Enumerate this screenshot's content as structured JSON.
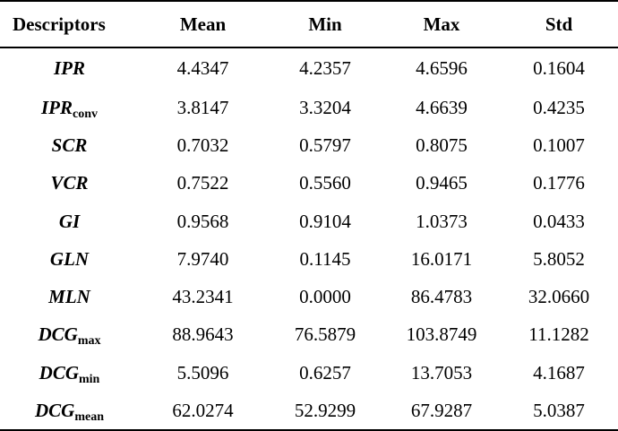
{
  "table": {
    "headers": [
      "Descriptors",
      "Mean",
      "Min",
      "Max",
      "Std"
    ],
    "rows": [
      {
        "desc": "IPR",
        "sub": "",
        "mean": "4.4347",
        "min": "4.2357",
        "max": "4.6596",
        "std": "0.1604"
      },
      {
        "desc": "IPR",
        "sub": "conv",
        "mean": "3.8147",
        "min": "3.3204",
        "max": "4.6639",
        "std": "0.4235"
      },
      {
        "desc": "SCR",
        "sub": "",
        "mean": "0.7032",
        "min": "0.5797",
        "max": "0.8075",
        "std": "0.1007"
      },
      {
        "desc": "VCR",
        "sub": "",
        "mean": "0.7522",
        "min": "0.5560",
        "max": "0.9465",
        "std": "0.1776"
      },
      {
        "desc": "GI",
        "sub": "",
        "mean": "0.9568",
        "min": "0.9104",
        "max": "1.0373",
        "std": "0.0433"
      },
      {
        "desc": "GLN",
        "sub": "",
        "mean": "7.9740",
        "min": "0.1145",
        "max": "16.0171",
        "std": "5.8052"
      },
      {
        "desc": "MLN",
        "sub": "",
        "mean": "43.2341",
        "min": "0.0000",
        "max": "86.4783",
        "std": "32.0660"
      },
      {
        "desc": "DCG",
        "sub": "max",
        "mean": "88.9643",
        "min": "76.5879",
        "max": "103.8749",
        "std": "11.1282"
      },
      {
        "desc": "DCG",
        "sub": "min",
        "mean": "5.5096",
        "min": "0.6257",
        "max": "13.7053",
        "std": "4.1687"
      },
      {
        "desc": "DCG",
        "sub": "mean",
        "mean": "62.0274",
        "min": "52.9299",
        "max": "67.9287",
        "std": "5.0387"
      }
    ]
  }
}
